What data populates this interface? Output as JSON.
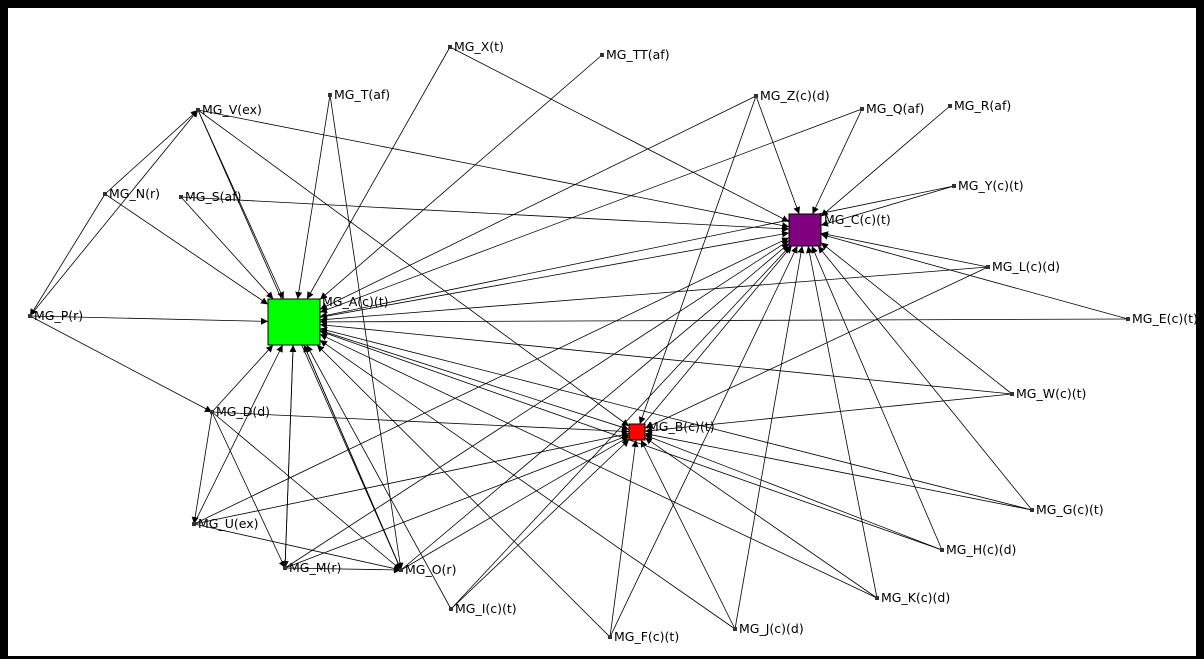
{
  "graph": {
    "nodes": [
      {
        "id": "A",
        "label": "MG_A(c)(t)",
        "kind": "hub",
        "color": "#00ff00"
      },
      {
        "id": "C",
        "label": "MG_C(c)(t)",
        "kind": "hub",
        "color": "#800080"
      },
      {
        "id": "B",
        "label": "MG_B(c)(t)",
        "kind": "hub",
        "color": "#ff0000"
      },
      {
        "id": "X",
        "label": "MG_X(t)"
      },
      {
        "id": "TT",
        "label": "MG_TT(af)"
      },
      {
        "id": "Z",
        "label": "MG_Z(c)(d)"
      },
      {
        "id": "Q",
        "label": "MG_Q(af)"
      },
      {
        "id": "R",
        "label": "MG_R(af)"
      },
      {
        "id": "T",
        "label": "MG_T(af)"
      },
      {
        "id": "V",
        "label": "MG_V(ex)"
      },
      {
        "id": "N",
        "label": "MG_N(r)"
      },
      {
        "id": "S",
        "label": "MG_S(af)"
      },
      {
        "id": "Y",
        "label": "MG_Y(c)(t)"
      },
      {
        "id": "L",
        "label": "MG_L(c)(d)"
      },
      {
        "id": "P",
        "label": "MG_P(r)"
      },
      {
        "id": "E",
        "label": "MG_E(c)(t)"
      },
      {
        "id": "W",
        "label": "MG_W(c)(t)"
      },
      {
        "id": "D",
        "label": "MG_D(d)"
      },
      {
        "id": "G",
        "label": "MG_G(c)(t)"
      },
      {
        "id": "U",
        "label": "MG_U(ex)"
      },
      {
        "id": "H",
        "label": "MG_H(c)(d)"
      },
      {
        "id": "M",
        "label": "MG_M(r)"
      },
      {
        "id": "O",
        "label": "MG_O(r)"
      },
      {
        "id": "K",
        "label": "MG_K(c)(d)"
      },
      {
        "id": "I",
        "label": "MG_I(c)(t)"
      },
      {
        "id": "J",
        "label": "MG_J(c)(d)"
      },
      {
        "id": "F",
        "label": "MG_F(c)(t)"
      }
    ],
    "edges": [
      [
        "X",
        "A"
      ],
      [
        "X",
        "C"
      ],
      [
        "TT",
        "A"
      ],
      [
        "T",
        "A"
      ],
      [
        "Z",
        "A"
      ],
      [
        "Z",
        "C"
      ],
      [
        "Z",
        "B"
      ],
      [
        "Q",
        "A"
      ],
      [
        "Q",
        "C"
      ],
      [
        "R",
        "C"
      ],
      [
        "V",
        "A"
      ],
      [
        "V",
        "C"
      ],
      [
        "V",
        "B"
      ],
      [
        "N",
        "V"
      ],
      [
        "N",
        "A"
      ],
      [
        "N",
        "P"
      ],
      [
        "S",
        "A"
      ],
      [
        "S",
        "C"
      ],
      [
        "P",
        "V"
      ],
      [
        "P",
        "A"
      ],
      [
        "P",
        "D"
      ],
      [
        "Y",
        "C"
      ],
      [
        "Y",
        "A"
      ],
      [
        "L",
        "C"
      ],
      [
        "L",
        "A"
      ],
      [
        "L",
        "B"
      ],
      [
        "E",
        "C"
      ],
      [
        "E",
        "A"
      ],
      [
        "W",
        "A"
      ],
      [
        "W",
        "B"
      ],
      [
        "W",
        "C"
      ],
      [
        "G",
        "A"
      ],
      [
        "G",
        "B"
      ],
      [
        "G",
        "C"
      ],
      [
        "H",
        "A"
      ],
      [
        "H",
        "B"
      ],
      [
        "H",
        "C"
      ],
      [
        "K",
        "A"
      ],
      [
        "K",
        "B"
      ],
      [
        "K",
        "C"
      ],
      [
        "J",
        "A"
      ],
      [
        "J",
        "B"
      ],
      [
        "J",
        "C"
      ],
      [
        "F",
        "A"
      ],
      [
        "F",
        "B"
      ],
      [
        "F",
        "C"
      ],
      [
        "I",
        "A"
      ],
      [
        "I",
        "B"
      ],
      [
        "I",
        "C"
      ],
      [
        "D",
        "A"
      ],
      [
        "D",
        "B"
      ],
      [
        "D",
        "U"
      ],
      [
        "D",
        "M"
      ],
      [
        "D",
        "O"
      ],
      [
        "U",
        "A"
      ],
      [
        "U",
        "B"
      ],
      [
        "U",
        "C"
      ],
      [
        "U",
        "O"
      ],
      [
        "M",
        "A"
      ],
      [
        "M",
        "O"
      ],
      [
        "M",
        "B"
      ],
      [
        "M",
        "C"
      ],
      [
        "O",
        "A"
      ],
      [
        "O",
        "B"
      ],
      [
        "O",
        "C"
      ],
      [
        "A",
        "O"
      ],
      [
        "A",
        "M"
      ],
      [
        "A",
        "B"
      ],
      [
        "A",
        "C"
      ],
      [
        "B",
        "C"
      ],
      [
        "T",
        "O"
      ],
      [
        "V",
        "O"
      ]
    ]
  }
}
